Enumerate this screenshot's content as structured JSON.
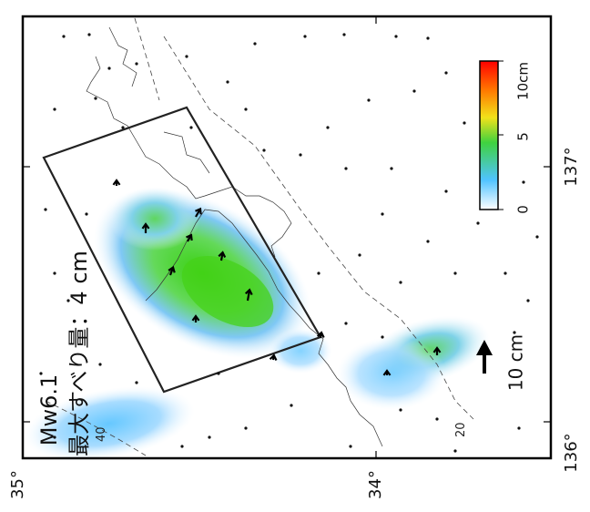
{
  "figure": {
    "magnitude": "Mw6.1",
    "max_slip": "最大すべり量：4 cm"
  },
  "axes": {
    "lat_ticks": [
      "35°",
      "34°"
    ],
    "lon_ticks": [
      "137°",
      "136°"
    ]
  },
  "contours": [
    "40",
    "20"
  ],
  "scale_bar": {
    "ticks": [
      "10cm",
      "5",
      "0"
    ],
    "colors": [
      "#ffffff",
      "#4fc3ff",
      "#3fd23f",
      "#f2e21a",
      "#ff7a00",
      "#ff0000"
    ],
    "max_value": 10
  },
  "vector_legend": {
    "label": "10 cm"
  },
  "slip_patches": [
    {
      "value": 4
    },
    {
      "value": 3
    },
    {
      "value": 2
    },
    {
      "value": 2
    },
    {
      "value": 1
    }
  ]
}
